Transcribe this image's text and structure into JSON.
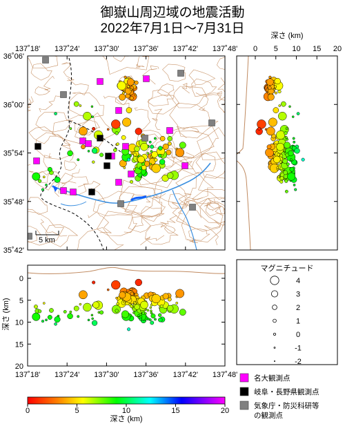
{
  "title_line1": "御嶽山周辺域の地震活動",
  "title_line2": "2022年7月1日～7月31日",
  "map": {
    "lon_ticks": [
      "137˚18'",
      "137˚24'",
      "137˚30'",
      "137˚36'",
      "137˚42'",
      "137˚48'"
    ],
    "lat_ticks": [
      "36˚06'",
      "36˚00'",
      "35˚54'",
      "35˚48'",
      "35˚42'"
    ],
    "scale_label": "5 km"
  },
  "depth_panel_right": {
    "title": "深さ (km)",
    "ticks": [
      "0",
      "5",
      "10",
      "15",
      "20"
    ]
  },
  "depth_panel_bottom": {
    "ylabel": "深さ (km)",
    "y_ticks": [
      "0",
      "5",
      "10",
      "15",
      "20"
    ],
    "x_ticks": [
      "137˚18'",
      "137˚24'",
      "137˚30'",
      "137˚36'",
      "137˚42'",
      "137˚48'"
    ]
  },
  "magnitude_legend": {
    "title": "マグニチュード",
    "items": [
      "4",
      "3",
      "2",
      "1",
      "0",
      "-1",
      "-2"
    ]
  },
  "station_legend": {
    "items": [
      {
        "label": "名大観測点",
        "color": "#ff00ff"
      },
      {
        "label": "岐阜・長野県観測点",
        "color": "#000000"
      },
      {
        "label": "気象庁・防災科研等",
        "label2": "の観測点",
        "color": "#808080"
      }
    ]
  },
  "colorbar": {
    "label": "深さ (km)",
    "ticks": [
      "0",
      "5",
      "10",
      "15",
      "20"
    ]
  }
}
